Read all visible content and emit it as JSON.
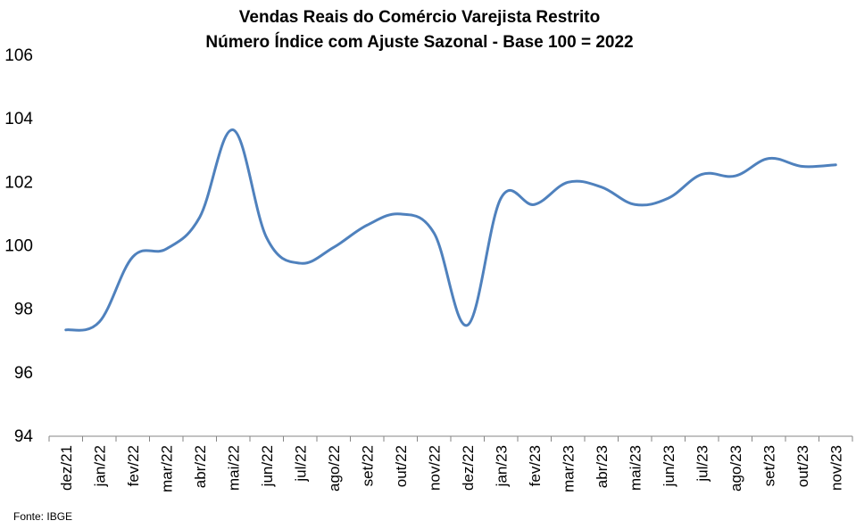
{
  "chart_data": {
    "type": "line",
    "title": "Vendas Reais do Comércio Varejista Restrito",
    "subtitle": "Número Índice com Ajuste Sazonal - Base 100 = 2022",
    "categories": [
      "dez/21",
      "jan/22",
      "fev/22",
      "mar/22",
      "abr/22",
      "mai/22",
      "jun/22",
      "jul/22",
      "ago/22",
      "set/22",
      "out/22",
      "nov/22",
      "dez/22",
      "jan/23",
      "fev/23",
      "mar/23",
      "abr/23",
      "mai/23",
      "jun/23",
      "jul/23",
      "ago/23",
      "set/23",
      "out/23",
      "nov/23"
    ],
    "series": [
      {
        "values": [
          97.35,
          97.6,
          99.65,
          99.9,
          100.9,
          103.65,
          100.25,
          99.45,
          99.95,
          100.65,
          101.0,
          100.4,
          97.5,
          101.5,
          101.3,
          102.0,
          101.85,
          101.3,
          101.5,
          102.25,
          102.2,
          102.75,
          102.5,
          102.55
        ]
      }
    ],
    "yticks": [
      94,
      96,
      98,
      100,
      102,
      104,
      106
    ],
    "ylim": [
      94,
      106
    ],
    "grid": false,
    "legend": "none",
    "line_color": "#4f81bd",
    "source": "Fonte: IBGE"
  }
}
